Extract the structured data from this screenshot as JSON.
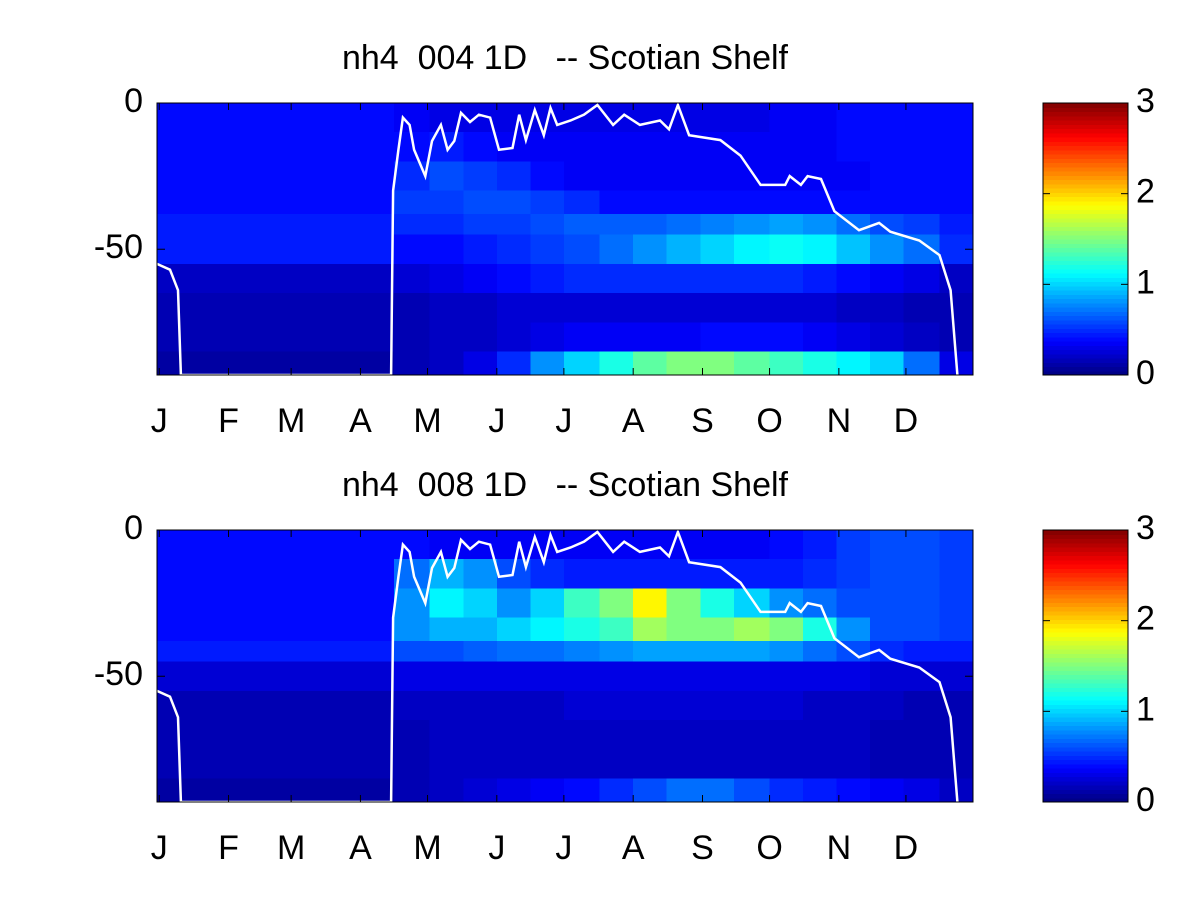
{
  "chart_data": [
    {
      "type": "heatmap",
      "title": "nh4  004 1D   -- Scotian Shelf",
      "colormap": "jet",
      "x": [
        0,
        15,
        31,
        46,
        61,
        76,
        91,
        106,
        122,
        137,
        152,
        167,
        182,
        198,
        213,
        228,
        243,
        258,
        274,
        289,
        304,
        319,
        334,
        350,
        365
      ],
      "y": [
        0,
        -10,
        -20,
        -30,
        -38,
        -45,
        -55,
        -65,
        -75,
        -85,
        -93
      ],
      "z": [
        [
          0.4,
          0.4,
          0.4,
          0.4,
          0.4,
          0.4,
          0.4,
          0.35,
          0.3,
          0.3,
          0.3,
          0.3,
          0.3,
          0.3,
          0.3,
          0.3,
          0.3,
          0.3,
          0.35,
          0.35,
          0.4,
          0.4,
          0.4,
          0.4
        ],
        [
          0.4,
          0.4,
          0.4,
          0.4,
          0.4,
          0.4,
          0.4,
          0.4,
          0.45,
          0.4,
          0.35,
          0.35,
          0.35,
          0.35,
          0.35,
          0.35,
          0.35,
          0.35,
          0.35,
          0.35,
          0.4,
          0.4,
          0.4,
          0.4
        ],
        [
          0.4,
          0.4,
          0.4,
          0.4,
          0.4,
          0.4,
          0.4,
          0.5,
          0.6,
          0.55,
          0.5,
          0.4,
          0.35,
          0.35,
          0.35,
          0.35,
          0.35,
          0.35,
          0.35,
          0.35,
          0.35,
          0.4,
          0.4,
          0.4
        ],
        [
          0.4,
          0.4,
          0.4,
          0.4,
          0.4,
          0.4,
          0.4,
          0.55,
          0.55,
          0.6,
          0.6,
          0.55,
          0.5,
          0.4,
          0.4,
          0.4,
          0.4,
          0.4,
          0.4,
          0.4,
          0.4,
          0.4,
          0.4,
          0.4
        ],
        [
          0.45,
          0.45,
          0.45,
          0.45,
          0.45,
          0.45,
          0.45,
          0.5,
          0.5,
          0.55,
          0.55,
          0.6,
          0.65,
          0.65,
          0.65,
          0.7,
          0.75,
          0.8,
          0.85,
          0.8,
          0.7,
          0.6,
          0.55,
          0.45
        ],
        [
          0.45,
          0.45,
          0.45,
          0.45,
          0.45,
          0.45,
          0.45,
          0.4,
          0.4,
          0.45,
          0.5,
          0.55,
          0.6,
          0.7,
          0.8,
          0.9,
          1.0,
          1.1,
          1.15,
          1.1,
          0.95,
          0.8,
          0.7,
          0.5
        ],
        [
          0.2,
          0.2,
          0.2,
          0.2,
          0.2,
          0.2,
          0.2,
          0.25,
          0.3,
          0.35,
          0.4,
          0.45,
          0.5,
          0.5,
          0.5,
          0.5,
          0.5,
          0.5,
          0.5,
          0.45,
          0.4,
          0.35,
          0.3,
          0.2
        ],
        [
          0.15,
          0.15,
          0.15,
          0.15,
          0.15,
          0.15,
          0.15,
          0.15,
          0.2,
          0.2,
          0.25,
          0.25,
          0.25,
          0.25,
          0.25,
          0.25,
          0.25,
          0.25,
          0.25,
          0.25,
          0.2,
          0.2,
          0.15,
          0.15
        ],
        [
          0.15,
          0.15,
          0.15,
          0.15,
          0.15,
          0.15,
          0.15,
          0.15,
          0.2,
          0.2,
          0.25,
          0.3,
          0.35,
          0.35,
          0.35,
          0.35,
          0.4,
          0.4,
          0.4,
          0.35,
          0.3,
          0.25,
          0.2,
          0.15
        ],
        [
          0.1,
          0.1,
          0.1,
          0.1,
          0.1,
          0.1,
          0.1,
          0.15,
          0.2,
          0.3,
          0.5,
          0.8,
          1.0,
          1.2,
          1.4,
          1.5,
          1.5,
          1.4,
          1.3,
          1.2,
          1.1,
          1.0,
          0.7,
          0.3
        ]
      ],
      "xlim": [
        0,
        365
      ],
      "ylim": [
        -93,
        0
      ],
      "xticks": [
        {
          "value": 1,
          "label": "J"
        },
        {
          "value": 32,
          "label": "F"
        },
        {
          "value": 60,
          "label": "M"
        },
        {
          "value": 91,
          "label": "A"
        },
        {
          "value": 121,
          "label": "M"
        },
        {
          "value": 152,
          "label": "J"
        },
        {
          "value": 182,
          "label": "J"
        },
        {
          "value": 213,
          "label": "A"
        },
        {
          "value": 244,
          "label": "S"
        },
        {
          "value": 274,
          "label": "O"
        },
        {
          "value": 305,
          "label": "N"
        },
        {
          "value": 335,
          "label": "D"
        }
      ],
      "yticks": [
        0,
        -50
      ],
      "clim": [
        0,
        3
      ],
      "cticks": [
        0,
        1,
        2,
        3
      ],
      "line": {
        "color": "#ffffff",
        "x": [
          0,
          5.8,
          9.4,
          10.7,
          104.7,
          105.6,
          108,
          110,
          113,
          115,
          120,
          123,
          127,
          130,
          133,
          136,
          140,
          144,
          149,
          153,
          159,
          162,
          165,
          169,
          173,
          176,
          179,
          185,
          191,
          197,
          204,
          209,
          216,
          225,
          229,
          233,
          238,
          252,
          261,
          270,
          281,
          283,
          288,
          291,
          297,
          303,
          314,
          323,
          328,
          341,
          350,
          355,
          358
        ],
        "y": [
          -55,
          -57,
          -64,
          -93,
          -93,
          -30,
          -16,
          -5,
          -7.5,
          -16,
          -25,
          -13,
          -7.5,
          -16,
          -13,
          -3.4,
          -6.5,
          -4,
          -5,
          -16,
          -15.4,
          -4,
          -12.7,
          -2.4,
          -11,
          -1.7,
          -7.5,
          -6,
          -4,
          -0.7,
          -7.5,
          -4,
          -7.5,
          -6,
          -9,
          -0.7,
          -11,
          -12.7,
          -18,
          -28,
          -28,
          -25,
          -28,
          -25,
          -26,
          -37,
          -43.5,
          -41,
          -44,
          -47,
          -52,
          -64,
          -93
        ]
      }
    },
    {
      "type": "heatmap",
      "title": "nh4  008 1D   -- Scotian Shelf",
      "colormap": "jet",
      "x": [
        0,
        15,
        31,
        46,
        61,
        76,
        91,
        106,
        122,
        137,
        152,
        167,
        182,
        198,
        213,
        228,
        243,
        258,
        274,
        289,
        304,
        319,
        334,
        350,
        365
      ],
      "y": [
        0,
        -10,
        -20,
        -30,
        -38,
        -45,
        -55,
        -65,
        -75,
        -85,
        -93
      ],
      "z": [
        [
          0.4,
          0.4,
          0.4,
          0.4,
          0.4,
          0.4,
          0.4,
          0.4,
          0.35,
          0.35,
          0.35,
          0.35,
          0.35,
          0.35,
          0.35,
          0.35,
          0.35,
          0.35,
          0.4,
          0.45,
          0.55,
          0.6,
          0.6,
          0.55
        ],
        [
          0.4,
          0.4,
          0.4,
          0.4,
          0.4,
          0.4,
          0.4,
          0.7,
          0.9,
          0.8,
          0.6,
          0.5,
          0.45,
          0.45,
          0.45,
          0.45,
          0.45,
          0.45,
          0.45,
          0.5,
          0.55,
          0.6,
          0.6,
          0.55
        ],
        [
          0.4,
          0.4,
          0.4,
          0.4,
          0.4,
          0.4,
          0.4,
          0.8,
          1.1,
          1.0,
          0.8,
          1.0,
          1.3,
          1.5,
          1.9,
          1.5,
          1.2,
          1.0,
          0.8,
          0.7,
          0.6,
          0.6,
          0.6,
          0.55
        ],
        [
          0.4,
          0.4,
          0.4,
          0.4,
          0.4,
          0.4,
          0.4,
          0.8,
          0.9,
          0.9,
          1.0,
          1.1,
          1.2,
          1.3,
          1.6,
          1.5,
          1.5,
          1.6,
          1.5,
          1.2,
          0.8,
          0.6,
          0.6,
          0.55
        ],
        [
          0.45,
          0.45,
          0.45,
          0.45,
          0.45,
          0.45,
          0.45,
          0.6,
          0.6,
          0.65,
          0.7,
          0.7,
          0.75,
          0.8,
          0.85,
          0.85,
          0.85,
          0.85,
          0.8,
          0.7,
          0.6,
          0.5,
          0.45,
          0.45
        ],
        [
          0.25,
          0.25,
          0.25,
          0.25,
          0.25,
          0.25,
          0.25,
          0.3,
          0.3,
          0.3,
          0.3,
          0.3,
          0.3,
          0.3,
          0.3,
          0.3,
          0.3,
          0.3,
          0.3,
          0.3,
          0.3,
          0.25,
          0.25,
          0.25
        ],
        [
          0.15,
          0.15,
          0.15,
          0.15,
          0.15,
          0.15,
          0.15,
          0.2,
          0.2,
          0.2,
          0.2,
          0.2,
          0.25,
          0.25,
          0.25,
          0.25,
          0.25,
          0.25,
          0.25,
          0.2,
          0.2,
          0.2,
          0.15,
          0.15
        ],
        [
          0.15,
          0.15,
          0.15,
          0.15,
          0.15,
          0.15,
          0.15,
          0.15,
          0.2,
          0.2,
          0.2,
          0.2,
          0.2,
          0.2,
          0.2,
          0.2,
          0.2,
          0.2,
          0.2,
          0.2,
          0.2,
          0.15,
          0.15,
          0.15
        ],
        [
          0.15,
          0.15,
          0.15,
          0.15,
          0.15,
          0.15,
          0.15,
          0.15,
          0.2,
          0.2,
          0.2,
          0.2,
          0.2,
          0.2,
          0.2,
          0.2,
          0.2,
          0.2,
          0.2,
          0.2,
          0.2,
          0.15,
          0.15,
          0.15
        ],
        [
          0.1,
          0.1,
          0.1,
          0.1,
          0.1,
          0.1,
          0.1,
          0.15,
          0.2,
          0.25,
          0.3,
          0.35,
          0.4,
          0.5,
          0.6,
          0.7,
          0.7,
          0.6,
          0.5,
          0.45,
          0.4,
          0.35,
          0.3,
          0.2
        ]
      ],
      "xlim": [
        0,
        365
      ],
      "ylim": [
        -93,
        0
      ],
      "xticks": [
        {
          "value": 1,
          "label": "J"
        },
        {
          "value": 32,
          "label": "F"
        },
        {
          "value": 60,
          "label": "M"
        },
        {
          "value": 91,
          "label": "A"
        },
        {
          "value": 121,
          "label": "M"
        },
        {
          "value": 152,
          "label": "J"
        },
        {
          "value": 182,
          "label": "J"
        },
        {
          "value": 213,
          "label": "A"
        },
        {
          "value": 244,
          "label": "S"
        },
        {
          "value": 274,
          "label": "O"
        },
        {
          "value": 305,
          "label": "N"
        },
        {
          "value": 335,
          "label": "D"
        }
      ],
      "yticks": [
        0,
        -50
      ],
      "clim": [
        0,
        3
      ],
      "cticks": [
        0,
        1,
        2,
        3
      ],
      "line": {
        "color": "#ffffff",
        "x": [
          0,
          5.8,
          9.4,
          10.7,
          104.7,
          105.6,
          108,
          110,
          113,
          115,
          120,
          123,
          127,
          130,
          133,
          136,
          140,
          144,
          149,
          153,
          159,
          162,
          165,
          169,
          173,
          176,
          179,
          185,
          191,
          197,
          204,
          209,
          216,
          225,
          229,
          233,
          238,
          252,
          261,
          270,
          281,
          283,
          288,
          291,
          297,
          303,
          314,
          323,
          328,
          341,
          350,
          355,
          358
        ],
        "y": [
          -55,
          -57,
          -64,
          -93,
          -93,
          -30,
          -16,
          -5,
          -7.5,
          -16,
          -25,
          -13,
          -7.5,
          -16,
          -13,
          -3.4,
          -6.5,
          -4,
          -5,
          -16,
          -15.4,
          -4,
          -12.7,
          -2.4,
          -11,
          -1.7,
          -7.5,
          -6,
          -4,
          -0.7,
          -7.5,
          -4,
          -7.5,
          -6,
          -9,
          -0.7,
          -11,
          -12.7,
          -18,
          -28,
          -28,
          -25,
          -28,
          -25,
          -26,
          -37,
          -43.5,
          -41,
          -44,
          -47,
          -52,
          -64,
          -93
        ]
      }
    }
  ]
}
